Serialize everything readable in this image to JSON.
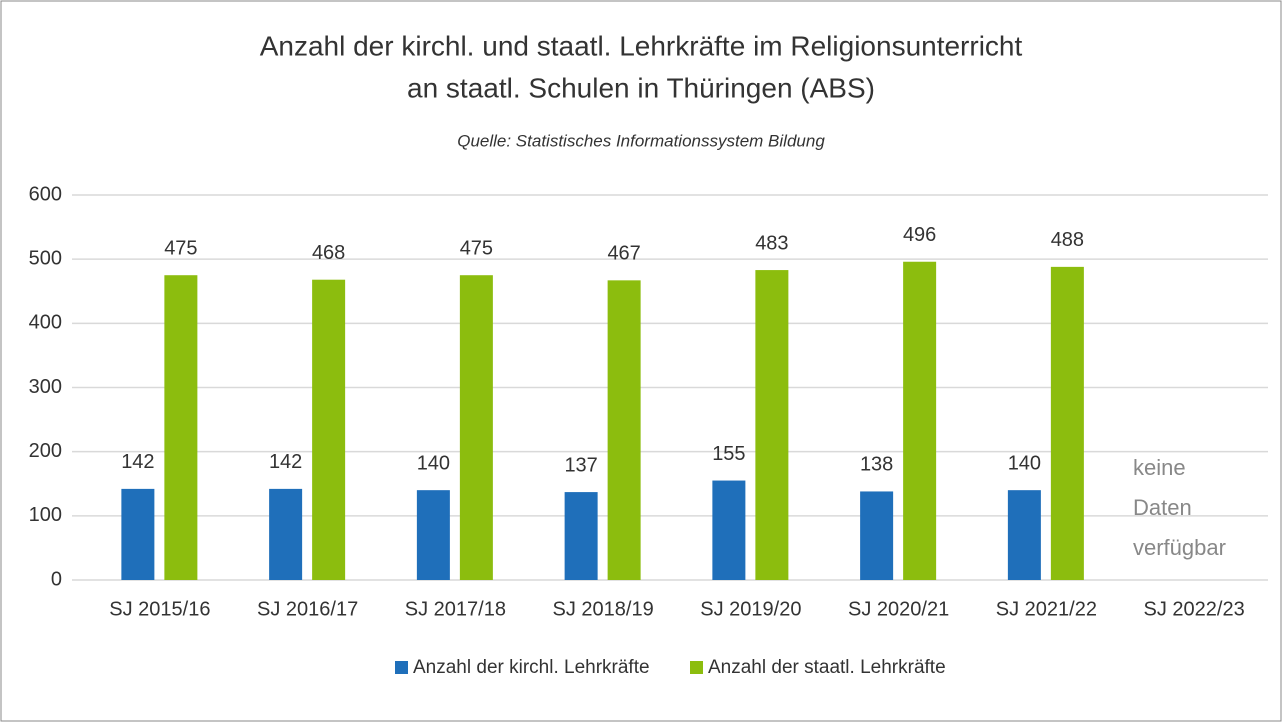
{
  "chart_data": {
    "type": "bar",
    "title": [
      "Anzahl der kirchl. und staatl. Lehrkräfte im Religionsunterricht",
      "an staatl. Schulen in Thüringen (ABS)"
    ],
    "subtitle": "Quelle: Statistisches Informationssystem Bildung",
    "categories": [
      "SJ 2015/16",
      "SJ 2016/17",
      "SJ 2017/18",
      "SJ 2018/19",
      "SJ 2019/20",
      "SJ 2020/21",
      "SJ 2021/22",
      "SJ 2022/23"
    ],
    "series": [
      {
        "name": "Anzahl der kirchl. Lehrkräfte",
        "color": "#1f6fba",
        "values": [
          142,
          142,
          140,
          137,
          155,
          138,
          140,
          null
        ]
      },
      {
        "name": "Anzahl der staatl. Lehrkräfte",
        "color": "#8cbd0e",
        "values": [
          475,
          468,
          475,
          467,
          483,
          496,
          488,
          null
        ]
      }
    ],
    "annotation": "keine Daten verfügbar",
    "ylim": [
      0,
      600
    ],
    "yticks": [
      0,
      100,
      200,
      300,
      400,
      500,
      600
    ],
    "grid": true,
    "legend": "bottom"
  }
}
